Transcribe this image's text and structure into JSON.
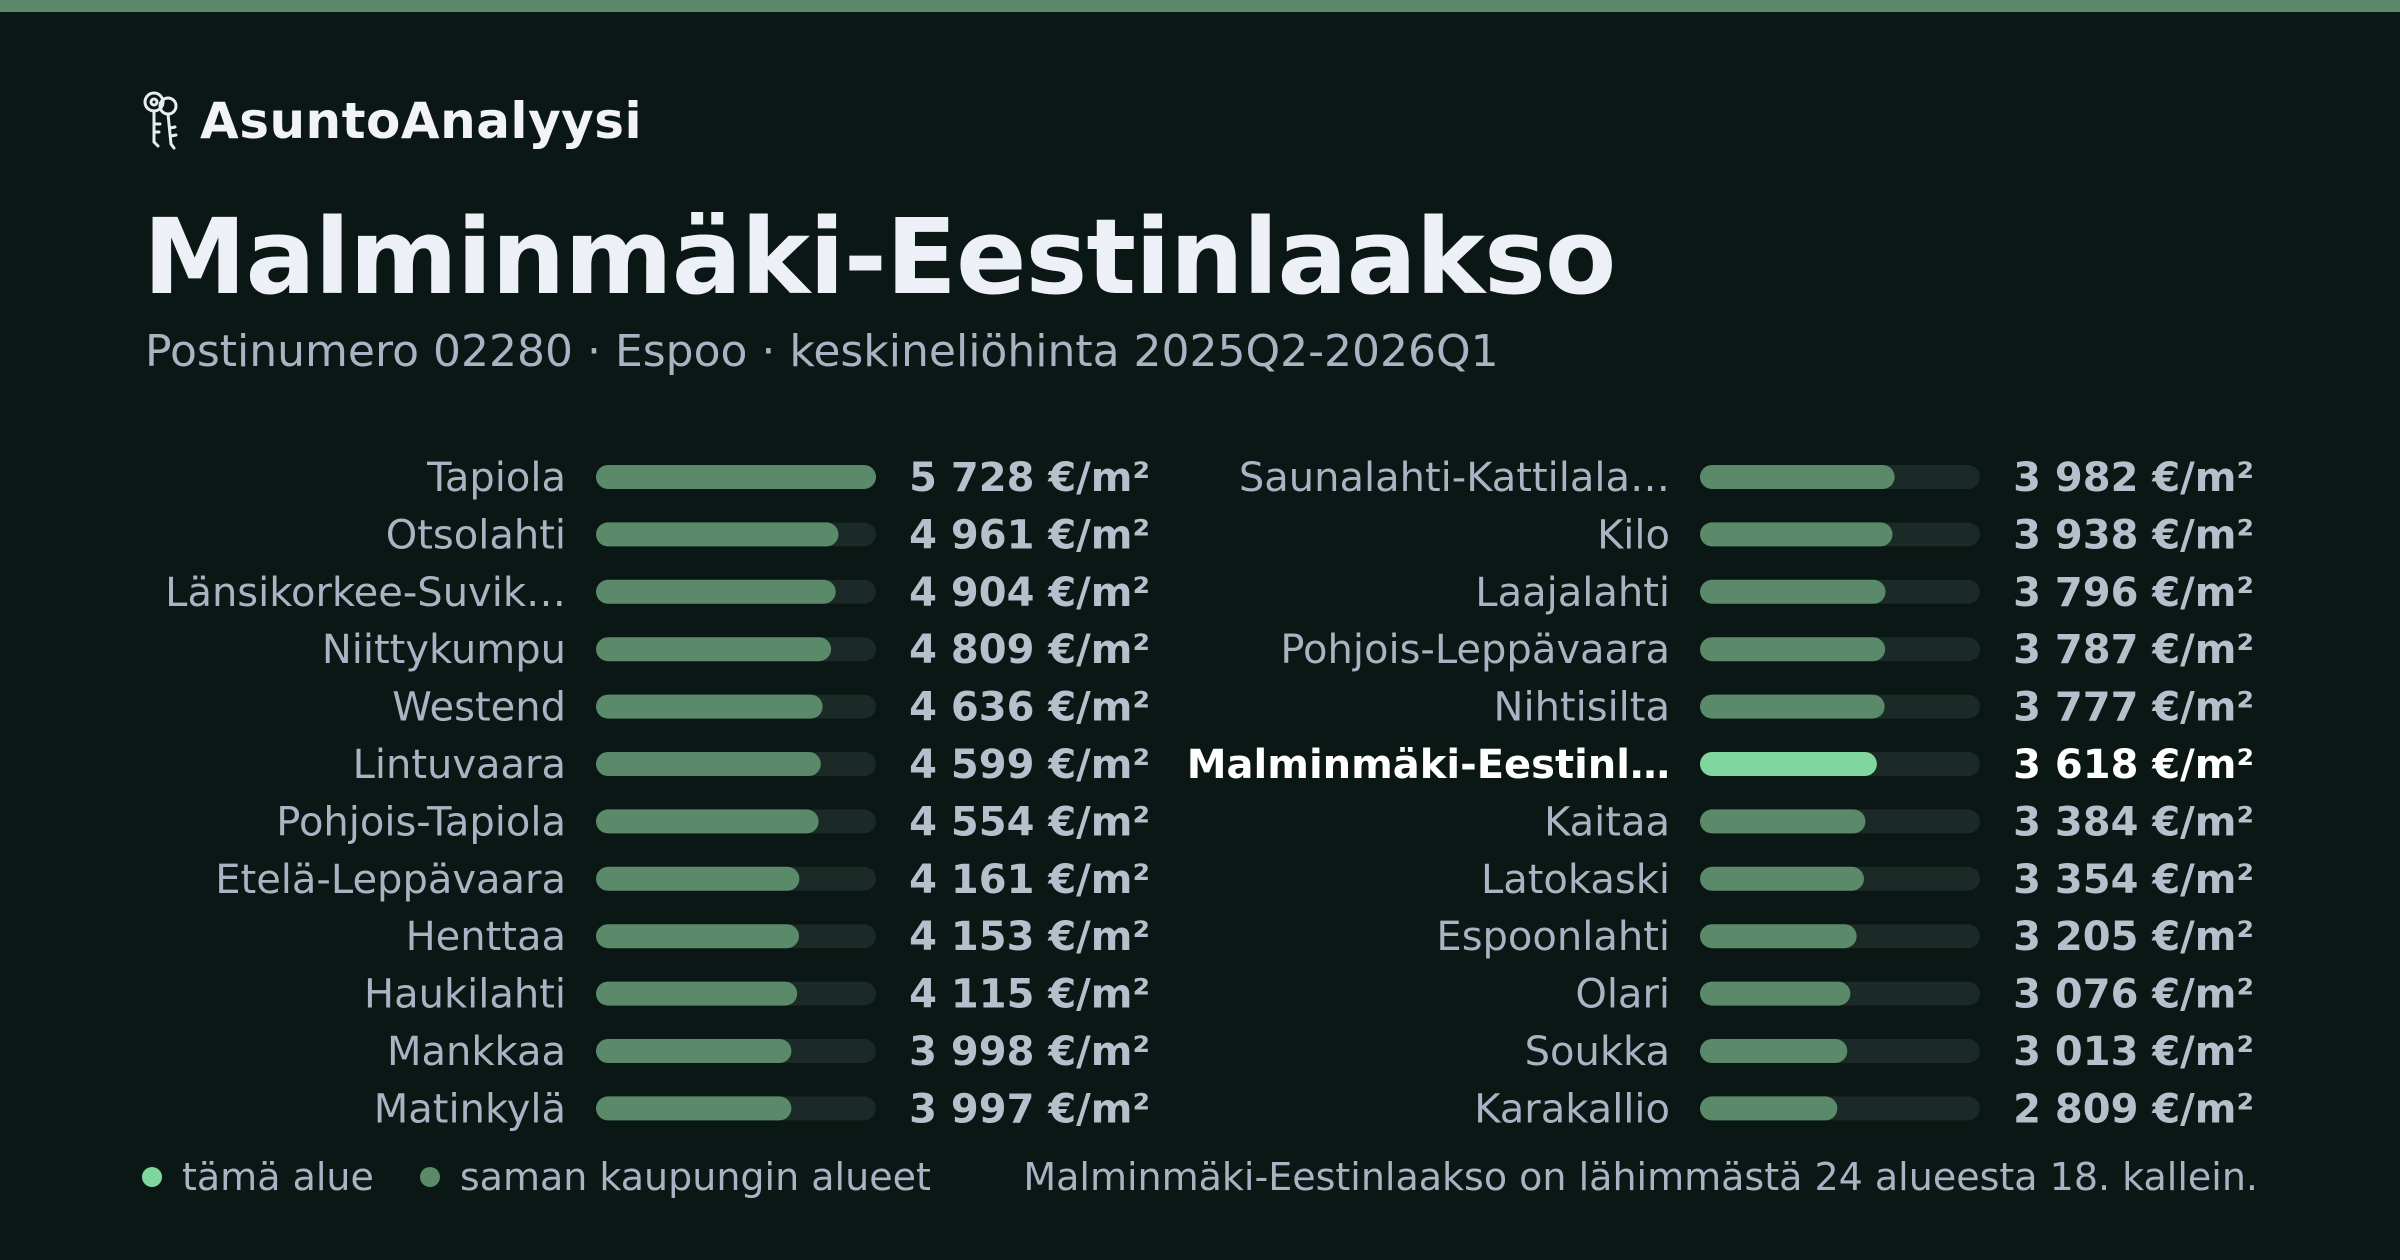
{
  "brand": {
    "name": "AsuntoAnalyysi",
    "icon": "keys-icon"
  },
  "header": {
    "title": "Malminmäki-Eestinlaakso",
    "subtitle": "Postinumero 02280 · Espoo · keskineliöhinta 2025Q2-2026Q1"
  },
  "colors": {
    "background": "#0a1714",
    "accent_bar": "#5b8a6a",
    "highlight": "#7fd69f",
    "track": "#1b2a26",
    "label": "#aab3c4",
    "value": "#b7bfcd",
    "highlight_text": "#ffffff"
  },
  "chart_data": {
    "type": "bar",
    "orientation": "horizontal",
    "unit": "€/m²",
    "xlim": [
      0,
      5728
    ],
    "highlight": "Malminmäki-Eestinlaakso",
    "items": [
      {
        "label": "Tapiola",
        "value": 5728,
        "value_label": "5 728 €/m²"
      },
      {
        "label": "Otsolahti",
        "value": 4961,
        "value_label": "4 961 €/m²"
      },
      {
        "label": "Länsikorkee-Suvik…",
        "value": 4904,
        "value_label": "4 904 €/m²"
      },
      {
        "label": "Niittykumpu",
        "value": 4809,
        "value_label": "4 809 €/m²"
      },
      {
        "label": "Westend",
        "value": 4636,
        "value_label": "4 636 €/m²"
      },
      {
        "label": "Lintuvaara",
        "value": 4599,
        "value_label": "4 599 €/m²"
      },
      {
        "label": "Pohjois-Tapiola",
        "value": 4554,
        "value_label": "4 554 €/m²"
      },
      {
        "label": "Etelä-Leppävaara",
        "value": 4161,
        "value_label": "4 161 €/m²"
      },
      {
        "label": "Henttaa",
        "value": 4153,
        "value_label": "4 153 €/m²"
      },
      {
        "label": "Haukilahti",
        "value": 4115,
        "value_label": "4 115 €/m²"
      },
      {
        "label": "Mankkaa",
        "value": 3998,
        "value_label": "3 998 €/m²"
      },
      {
        "label": "Matinkylä",
        "value": 3997,
        "value_label": "3 997 €/m²"
      },
      {
        "label": "Saunalahti-Kattilala…",
        "value": 3982,
        "value_label": "3 982 €/m²"
      },
      {
        "label": "Kilo",
        "value": 3938,
        "value_label": "3 938 €/m²"
      },
      {
        "label": "Laajalahti",
        "value": 3796,
        "value_label": "3 796 €/m²"
      },
      {
        "label": "Pohjois-Leppävaara",
        "value": 3787,
        "value_label": "3 787 €/m²"
      },
      {
        "label": "Nihtisilta",
        "value": 3777,
        "value_label": "3 777 €/m²"
      },
      {
        "label": "Malminmäki-Eestinl…",
        "value": 3618,
        "value_label": "3 618 €/m²",
        "highlight": true
      },
      {
        "label": "Kaitaa",
        "value": 3384,
        "value_label": "3 384 €/m²"
      },
      {
        "label": "Latokaski",
        "value": 3354,
        "value_label": "3 354 €/m²"
      },
      {
        "label": "Espoonlahti",
        "value": 3205,
        "value_label": "3 205 €/m²"
      },
      {
        "label": "Olari",
        "value": 3076,
        "value_label": "3 076 €/m²"
      },
      {
        "label": "Soukka",
        "value": 3013,
        "value_label": "3 013 €/m²"
      },
      {
        "label": "Karakallio",
        "value": 2809,
        "value_label": "2 809 €/m²"
      }
    ]
  },
  "legend": {
    "this_area": "tämä alue",
    "city_areas": "saman kaupungin alueet"
  },
  "footer": {
    "rank_note": "Malminmäki-Eestinlaakso on lähimmästä 24 alueesta 18. kallein."
  }
}
